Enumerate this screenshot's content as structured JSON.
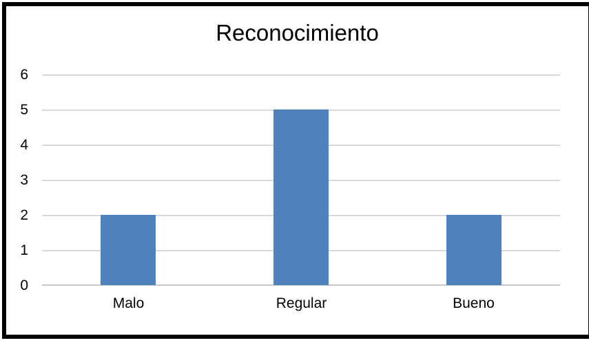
{
  "chart_data": {
    "type": "bar",
    "title": "Reconocimiento",
    "categories": [
      "Malo",
      "Regular",
      "Bueno"
    ],
    "values": [
      2,
      5,
      2
    ],
    "xlabel": "",
    "ylabel": "",
    "ylim": [
      0,
      6
    ],
    "yticks": [
      0,
      1,
      2,
      3,
      4,
      5,
      6
    ],
    "grid": true,
    "legend": false
  },
  "colors": {
    "bar": "#4F81BD",
    "gridline": "#D9D9D9",
    "axis_line": "#C8C8C8",
    "text": "#000000",
    "frame_border": "#000000",
    "background": "#FFFFFF"
  }
}
